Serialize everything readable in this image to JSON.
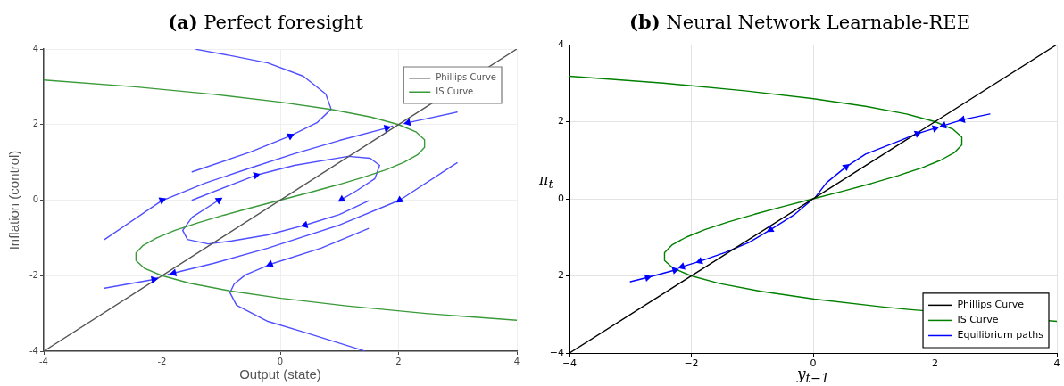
{
  "chart_data": [
    {
      "type": "line",
      "title": "(a) Perfect foresight",
      "xlabel": "Output (state)",
      "ylabel": "Inflation (control)",
      "xlim": [
        -4,
        4
      ],
      "ylim": [
        -4,
        4
      ],
      "xticks": [
        -4,
        -2,
        0,
        2,
        4
      ],
      "yticks": [
        -4,
        -2,
        0,
        2,
        4
      ],
      "grid": true,
      "legend": "top right",
      "marker": "none",
      "series": [
        {
          "name": "Phillips Curve",
          "color": "#555555",
          "x": [
            -4,
            4
          ],
          "values": [
            -4,
            4
          ]
        },
        {
          "name": "IS Curve",
          "color": "#3a9a3a",
          "x": [
            -4,
            -2.46,
            -1.12,
            -0.02,
            0.86,
            1.53,
            2.0,
            2.3,
            2.44,
            2.44,
            2.32,
            2.09,
            1.78,
            1.39,
            0.96,
            0.49,
            0,
            -0.49,
            -0.96,
            -1.39,
            -1.78,
            -2.09,
            -2.32,
            -2.44,
            -2.44,
            -2.3,
            -2.0,
            -1.53,
            -0.86,
            0.02,
            1.12,
            2.46,
            4
          ],
          "values": [
            3.18,
            3.0,
            2.8,
            2.6,
            2.4,
            2.2,
            2.0,
            1.8,
            1.6,
            1.4,
            1.2,
            1.0,
            0.8,
            0.6,
            0.4,
            0.2,
            0,
            -0.2,
            -0.4,
            -0.6,
            -0.8,
            -1.0,
            -1.2,
            -1.4,
            -1.6,
            -1.8,
            -2.0,
            -2.2,
            -2.4,
            -2.6,
            -2.8,
            -3.0,
            -3.18
          ]
        },
        {
          "color": "#4f4fff",
          "x": [
            -1.49,
            -0.51,
            0.17,
            0.62,
            0.86,
            0.77,
            0.39,
            -0.21,
            -0.82,
            -1.42
          ],
          "values": [
            0.75,
            1.27,
            1.7,
            2.05,
            2.41,
            2.81,
            3.28,
            3.63,
            3.82,
            3.99
          ]
        },
        {
          "color": "#4f4fff",
          "x": [
            -2.97,
            -2.01,
            -1.27,
            -0.51,
            0.24,
            1.0,
            1.8,
            1.9
          ],
          "values": [
            -1.04,
            -0.02,
            0.45,
            0.85,
            1.23,
            1.58,
            1.91,
            1.96
          ]
        },
        {
          "color": "#4f4fff",
          "x": [
            -1.49,
            -0.41,
            0.24,
            1.15,
            1.52,
            1.68,
            1.6,
            1.3,
            1.04
          ],
          "values": [
            0,
            0.66,
            0.92,
            1.16,
            1.11,
            0.92,
            0.57,
            0.26,
            0.02
          ]
        },
        {
          "color": "#4f4fff",
          "x": [
            1.49,
            1.0,
            0.42,
            -0.21,
            -0.82,
            -1.22,
            -1.57,
            -1.65,
            -1.49,
            -1.04
          ],
          "values": [
            -0.02,
            -0.38,
            -0.66,
            -0.92,
            -1.08,
            -1.16,
            -1.04,
            -0.8,
            -0.45,
            0
          ]
        },
        {
          "color": "#4f4fff",
          "x": [
            2.99,
            2.16,
            2.1
          ],
          "values": [
            2.33,
            2.05,
            2.03
          ]
        },
        {
          "color": "#4f4fff",
          "x": [
            2.99,
            2.02,
            1.0,
            -0.21,
            -1.12,
            -1.8,
            -1.9
          ],
          "values": [
            0.99,
            0,
            -0.66,
            -1.27,
            -1.67,
            -1.93,
            -1.97
          ]
        },
        {
          "color": "#4f4fff",
          "x": [
            -2.97,
            -2.14,
            -2.07
          ],
          "values": [
            -2.33,
            -2.1,
            -2.05
          ]
        },
        {
          "color": "#4f4fff",
          "x": [
            1.49,
            0.69,
            -0.17,
            -0.59,
            -0.78,
            -0.85,
            -0.74,
            -0.21,
            0.39,
            1.42
          ],
          "values": [
            -0.75,
            -1.27,
            -1.7,
            -1.98,
            -2.22,
            -2.45,
            -2.78,
            -3.21,
            -3.49,
            -3.99
          ]
        },
        {
          "type": "scatter",
          "marker": "triangle",
          "color": "#0000ff",
          "x": [
            0.17,
            -2.0,
            1.8,
            -0.41,
            1.04,
            0.42,
            -1.04,
            2.16,
            2.02,
            -1.8,
            -2.14,
            -0.17
          ],
          "values": [
            1.7,
            0,
            1.91,
            0.66,
            0.02,
            -0.66,
            0,
            2.05,
            0,
            -1.93,
            -2.1,
            -1.7
          ]
        }
      ]
    },
    {
      "type": "line",
      "title": "(b) Neural Network Learnable-REE",
      "xlabel": "y$_{t−1}$",
      "ylabel": "π$_{t}$",
      "xlim": [
        -4,
        4
      ],
      "ylim": [
        -4,
        4
      ],
      "xticks": [
        {
          "value": -4,
          "label": "−4"
        },
        {
          "value": -2,
          "label": "−2"
        },
        0,
        2,
        4
      ],
      "yticks": [
        {
          "value": -4,
          "label": "−4"
        },
        {
          "value": -2,
          "label": "−2"
        },
        0,
        2,
        4
      ],
      "grid": true,
      "legend": "bottom right",
      "marker": "none",
      "series": [
        {
          "name": "Phillips Curve",
          "color": "#000000",
          "x": [
            -4,
            4
          ],
          "values": [
            -4,
            4
          ]
        },
        {
          "name": "IS Curve",
          "color": "#008000",
          "x": [
            -4,
            -2.46,
            -1.12,
            -0.02,
            0.86,
            1.53,
            2.0,
            2.3,
            2.44,
            2.44,
            2.32,
            2.09,
            1.78,
            1.39,
            0.96,
            0.49,
            0,
            -0.49,
            -0.96,
            -1.39,
            -1.78,
            -2.09,
            -2.32,
            -2.44,
            -2.44,
            -2.3,
            -2.0,
            -1.53,
            -0.86,
            0.02,
            1.12,
            1.56,
            4
          ],
          "values": [
            3.18,
            3.0,
            2.8,
            2.6,
            2.4,
            2.2,
            2.0,
            1.8,
            1.6,
            1.4,
            1.2,
            1.0,
            0.8,
            0.6,
            0.4,
            0.2,
            0,
            -0.2,
            -0.4,
            -0.6,
            -0.8,
            -1.0,
            -1.2,
            -1.4,
            -1.6,
            -1.8,
            -2.0,
            -2.2,
            -2.4,
            -2.6,
            -2.8,
            -2.87,
            -3.18
          ]
        },
        {
          "name": "Equilibrium paths",
          "color": "#0000ff",
          "x": [
            -3.0,
            -2.72,
            -2.27,
            -2.25
          ],
          "values": [
            -2.15,
            -2.04,
            -1.85,
            -1.83
          ]
        },
        {
          "color": "#0000ff",
          "x": [
            -0.04,
            -0.3,
            -0.7,
            -1.05,
            -1.44,
            -1.86,
            -2.15,
            -2.18
          ],
          "values": [
            -0.05,
            -0.4,
            -0.8,
            -1.13,
            -1.39,
            -1.62,
            -1.76,
            -1.78
          ]
        },
        {
          "color": "#0000ff",
          "x": [
            0.04,
            0.22,
            0.54,
            0.86,
            1.41,
            1.71,
            2.0,
            2.04
          ],
          "values": [
            0.05,
            0.42,
            0.83,
            1.16,
            1.5,
            1.69,
            1.83,
            1.85
          ]
        },
        {
          "color": "#0000ff",
          "x": [
            2.9,
            2.45,
            2.14,
            2.1
          ],
          "values": [
            2.2,
            2.05,
            1.9,
            1.88
          ]
        },
        {
          "type": "scatter",
          "marker": "triangle",
          "color": "#0000ff",
          "x": [
            -2.72,
            -2.27,
            -2.15,
            -1.86,
            -0.7,
            0.54,
            1.71,
            2.0,
            2.14,
            2.45
          ],
          "values": [
            -2.04,
            -1.85,
            -1.76,
            -1.62,
            -0.8,
            0.83,
            1.69,
            1.83,
            1.9,
            2.05
          ]
        }
      ]
    }
  ]
}
